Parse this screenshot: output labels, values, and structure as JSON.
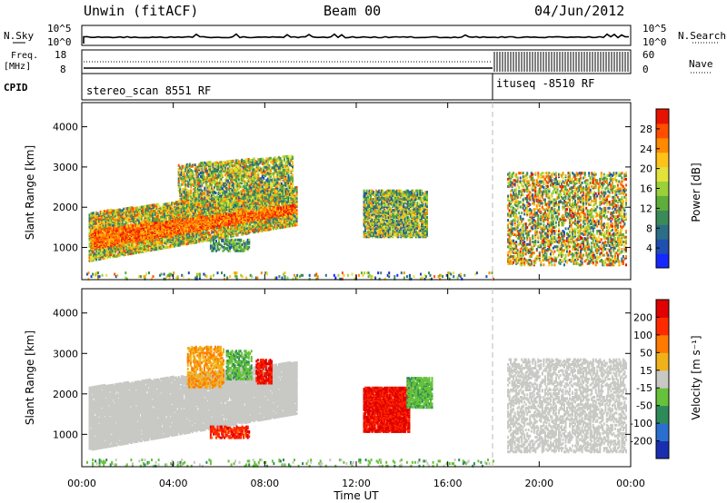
{
  "header": {
    "station": "Unwin (fitACF)",
    "beam": "Beam 00",
    "date": "04/Jun/2012"
  },
  "side_labels": {
    "nsky": "N.Sky",
    "nsearch": "N.Search",
    "freq": "Freq.",
    "freq_unit": "[MHz]",
    "nave": "Nave",
    "cpid": "CPID"
  },
  "panel_ticks": {
    "noise_left": [
      "10^5",
      "10^0"
    ],
    "noise_right": [
      "10^5",
      "10^0"
    ],
    "freq_left": [
      "18",
      "8"
    ],
    "nave_right": [
      "60",
      "0"
    ]
  },
  "cpid": {
    "first": "stereo_scan 8551 RF",
    "second": "ituseq -8510 RF",
    "switch_hour": 18
  },
  "chart_data": [
    {
      "type": "heatmap",
      "title": "",
      "xlabel": "Time UT",
      "ylabel": "Slant Range [km]",
      "xlim": [
        0,
        24
      ],
      "ylim": [
        200,
        4600
      ],
      "x_ticks": [
        "00:00",
        "04:00",
        "08:00",
        "12:00",
        "16:00",
        "20:00",
        "00:00"
      ],
      "y_ticks": [
        "1000",
        "2000",
        "3000",
        "4000"
      ],
      "colorbar": {
        "label": "Power [dB]",
        "ticks": [
          "4",
          "8",
          "12",
          "16",
          "20",
          "24",
          "28"
        ],
        "colors": [
          "#1528ff",
          "#1f4fb0",
          "#2c6e86",
          "#3b8b5a",
          "#5fae3a",
          "#9ad13a",
          "#e2e23a",
          "#ffc21a",
          "#ff8a00",
          "#ff4e00",
          "#e81200"
        ]
      },
      "blobs": [
        {
          "t0": 0.3,
          "t1": 9.4,
          "r0": 700,
          "r1": 1900,
          "slope": 900,
          "value": 0.55,
          "spread": 0.35,
          "density": 0.75
        },
        {
          "t0": 0.4,
          "t1": 9.3,
          "r0": 1000,
          "r1": 1450,
          "slope": 900,
          "value": 0.82,
          "spread": 0.15,
          "density": 0.9
        },
        {
          "t0": 4.2,
          "t1": 9.2,
          "r0": 1900,
          "r1": 3100,
          "slope": 300,
          "value": 0.5,
          "spread": 0.35,
          "density": 0.55
        },
        {
          "t0": 5.6,
          "t1": 7.3,
          "r0": 950,
          "r1": 1250,
          "slope": 0,
          "value": 0.35,
          "spread": 0.2,
          "density": 0.55
        },
        {
          "t0": 12.3,
          "t1": 15.1,
          "r0": 1300,
          "r1": 2450,
          "slope": 0,
          "value": 0.45,
          "spread": 0.35,
          "density": 0.7
        },
        {
          "t0": 18.6,
          "t1": 23.8,
          "r0": 600,
          "r1": 2900,
          "slope": 0,
          "value": 0.55,
          "spread": 0.4,
          "density": 0.35
        },
        {
          "t0": 0.2,
          "t1": 18.0,
          "r0": 220,
          "r1": 420,
          "slope": 0,
          "value": 0.45,
          "spread": 0.4,
          "density": 0.12
        }
      ]
    },
    {
      "type": "heatmap",
      "title": "",
      "xlabel": "Time UT",
      "ylabel": "Slant Range [km]",
      "xlim": [
        0,
        24
      ],
      "ylim": [
        200,
        4600
      ],
      "x_ticks": [
        "00:00",
        "04:00",
        "08:00",
        "12:00",
        "16:00",
        "20:00",
        "00:00"
      ],
      "y_ticks": [
        "1000",
        "2000",
        "3000",
        "4000"
      ],
      "colorbar": {
        "label": "Velocity [m s⁻¹]",
        "ticks": [
          "200",
          "100",
          "50",
          "15",
          "-15",
          "-50",
          "-100",
          "-200"
        ],
        "colors": [
          "#1a2fb0",
          "#2a6fd0",
          "#2f8a5a",
          "#66c23a",
          "#c8c8c4",
          "#f0b21a",
          "#ff7a00",
          "#ff2a00",
          "#e00000"
        ]
      },
      "blobs": [
        {
          "t0": 0.3,
          "t1": 9.4,
          "r0": 650,
          "r1": 2200,
          "slope": 900,
          "value": 0.5,
          "spread": 0.03,
          "density": 0.85
        },
        {
          "t0": 4.6,
          "t1": 6.2,
          "r0": 2200,
          "r1": 3200,
          "slope": 0,
          "value": 0.66,
          "spread": 0.05,
          "density": 0.45
        },
        {
          "t0": 6.3,
          "t1": 7.4,
          "r0": 2400,
          "r1": 3100,
          "slope": 0,
          "value": 0.36,
          "spread": 0.05,
          "density": 0.45
        },
        {
          "t0": 7.6,
          "t1": 8.3,
          "r0": 2300,
          "r1": 2900,
          "slope": 0,
          "value": 0.9,
          "spread": 0.05,
          "density": 0.6
        },
        {
          "t0": 5.6,
          "t1": 7.3,
          "r0": 950,
          "r1": 1250,
          "slope": 0,
          "value": 0.85,
          "spread": 0.08,
          "density": 0.55
        },
        {
          "t0": 12.3,
          "t1": 14.3,
          "r0": 1100,
          "r1": 2200,
          "slope": 0,
          "value": 0.9,
          "spread": 0.06,
          "density": 0.85
        },
        {
          "t0": 14.2,
          "t1": 15.3,
          "r0": 1700,
          "r1": 2450,
          "slope": 0,
          "value": 0.36,
          "spread": 0.05,
          "density": 0.7
        },
        {
          "t0": 18.6,
          "t1": 23.8,
          "r0": 600,
          "r1": 2900,
          "slope": 0,
          "value": 0.5,
          "spread": 0.04,
          "density": 0.35
        },
        {
          "t0": 0.2,
          "t1": 18.0,
          "r0": 220,
          "r1": 420,
          "slope": 0,
          "value": 0.4,
          "spread": 0.1,
          "density": 0.12
        }
      ]
    }
  ]
}
